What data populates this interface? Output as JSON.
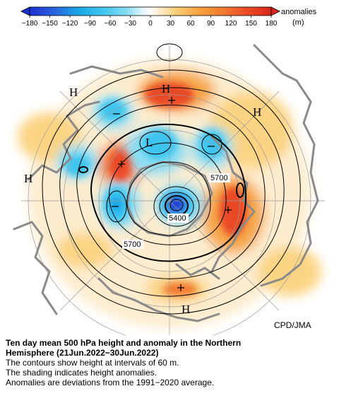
{
  "colorbar": {
    "ticks": [
      "−180",
      "−150",
      "−120",
      "−90",
      "−60",
      "−30",
      "0",
      "30",
      "60",
      "90",
      "120",
      "150",
      "180"
    ],
    "units_label_1": "anomalies",
    "units_label_2": "(m)",
    "colors": [
      "#1c2fd1",
      "#2f6fe0",
      "#19a5e6",
      "#3ec4ef",
      "#86ddf2",
      "#cdeff7",
      "#ffffff",
      "#fde6b3",
      "#fbc96a",
      "#f6a33f",
      "#f37b30",
      "#ea4a25",
      "#d8261c"
    ]
  },
  "map": {
    "highs": [
      "H",
      "H",
      "H",
      "H",
      "H"
    ],
    "low": "L",
    "contour_labels": [
      "5700",
      "5400",
      "5700"
    ],
    "credit": "CPD/JMA"
  },
  "caption": {
    "title_line1": "Ten day mean 500 hPa height and anomaly in the Northern",
    "title_line2": "Hemisphere (21Jun.2022−30Jun.2022)",
    "line1": "The contours show height at intervals of 60 m.",
    "line2": "The shading indicates height anomalies.",
    "line3": "Anomalies are deviations from the 1991−2020 average."
  }
}
